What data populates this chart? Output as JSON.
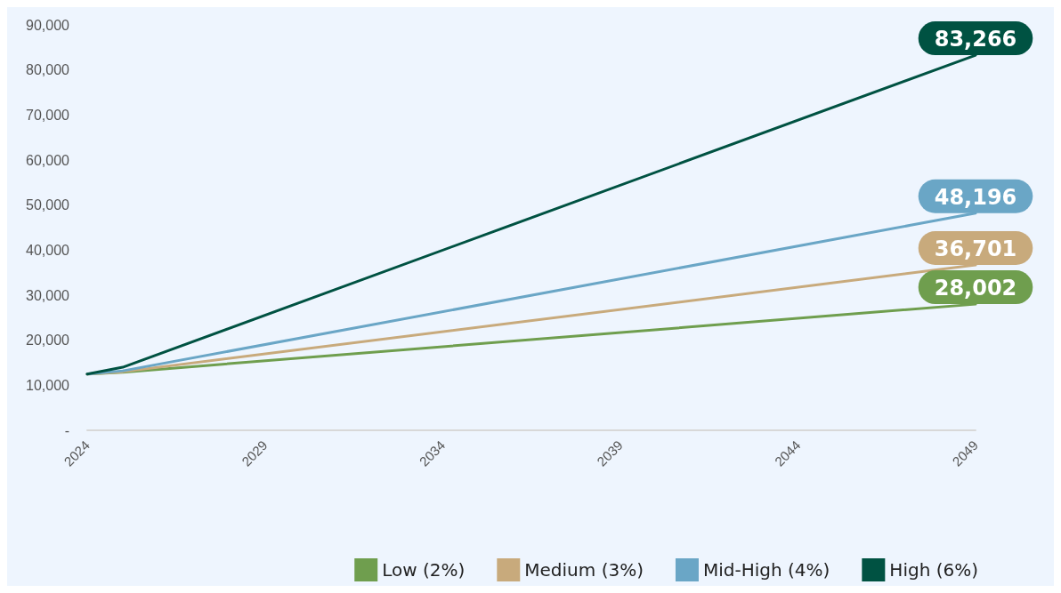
{
  "chart_data": {
    "type": "line",
    "x": [
      2024,
      2025,
      2049
    ],
    "xlim": [
      2024,
      2049
    ],
    "xticks": [
      2024,
      2029,
      2034,
      2039,
      2044,
      2049
    ],
    "ylim": [
      0,
      90000
    ],
    "yticks": [
      {
        "value": 0,
        "label": "-"
      },
      {
        "value": 10000,
        "label": "10,000"
      },
      {
        "value": 20000,
        "label": "20,000"
      },
      {
        "value": 30000,
        "label": "30,000"
      },
      {
        "value": 40000,
        "label": "40,000"
      },
      {
        "value": 50000,
        "label": "50,000"
      },
      {
        "value": 60000,
        "label": "60,000"
      },
      {
        "value": 70000,
        "label": "70,000"
      },
      {
        "value": 80000,
        "label": "80,000"
      },
      {
        "value": 90000,
        "label": "90,000"
      }
    ],
    "series": [
      {
        "name": "Low (2%)",
        "color": "#6f9e4e",
        "values": [
          12500,
          12900,
          28002
        ],
        "value_labels": [
          null,
          null,
          "28,002"
        ]
      },
      {
        "name": "Medium (3%)",
        "color": "#c8aa7c",
        "values": [
          12500,
          13000,
          36701
        ],
        "value_labels": [
          null,
          null,
          "36,701"
        ]
      },
      {
        "name": "Mid-High (4%)",
        "color": "#6aa6c6",
        "values": [
          12500,
          13200,
          48196
        ],
        "value_labels": [
          null,
          null,
          "48,196"
        ]
      },
      {
        "name": "High (6%)",
        "color": "#005242",
        "values": [
          12500,
          14000,
          83266
        ],
        "value_labels": [
          null,
          null,
          "83,266"
        ]
      }
    ],
    "grid": false,
    "legend": "bottom right",
    "marker": "none",
    "line_style": "solid"
  }
}
